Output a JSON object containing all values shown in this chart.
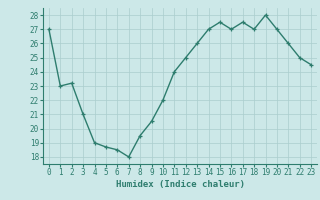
{
  "x": [
    0,
    1,
    2,
    3,
    4,
    5,
    6,
    7,
    8,
    9,
    10,
    11,
    12,
    13,
    14,
    15,
    16,
    17,
    18,
    19,
    20,
    21,
    22,
    23
  ],
  "y": [
    27,
    23,
    23.2,
    21,
    19,
    18.7,
    18.5,
    18,
    19.5,
    20.5,
    22,
    24,
    25,
    26,
    27,
    27.5,
    27,
    27.5,
    27,
    28,
    27,
    26,
    25,
    24.5
  ],
  "title": "",
  "xlabel": "Humidex (Indice chaleur)",
  "ylabel": "",
  "xlim": [
    -0.5,
    23.5
  ],
  "ylim": [
    17.5,
    28.5
  ],
  "yticks": [
    18,
    19,
    20,
    21,
    22,
    23,
    24,
    25,
    26,
    27,
    28
  ],
  "xticks": [
    0,
    1,
    2,
    3,
    4,
    5,
    6,
    7,
    8,
    9,
    10,
    11,
    12,
    13,
    14,
    15,
    16,
    17,
    18,
    19,
    20,
    21,
    22,
    23
  ],
  "line_color": "#2e7d6e",
  "marker_color": "#2e7d6e",
  "bg_color": "#cce8e8",
  "grid_color": "#aacece",
  "tick_label_fontsize": 5.5,
  "xlabel_fontsize": 6.5,
  "line_width": 1.0,
  "marker_size": 2.5
}
